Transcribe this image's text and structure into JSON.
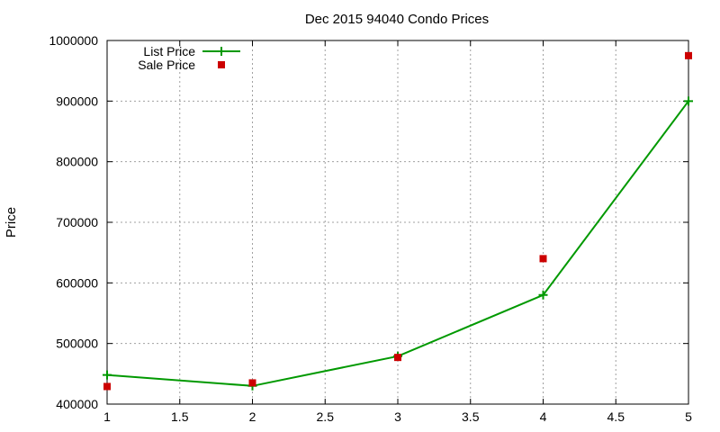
{
  "chart_data": {
    "type": "line",
    "title": "Dec 2015 94040 Condo Prices",
    "xlabel": "",
    "ylabel": "Price",
    "xlim": [
      1,
      5
    ],
    "ylim": [
      400000,
      1000000
    ],
    "x_ticks": [
      "1",
      "1.5",
      "2",
      "2.5",
      "3",
      "3.5",
      "4",
      "4.5",
      "5"
    ],
    "y_ticks": [
      "400000",
      "500000",
      "600000",
      "700000",
      "800000",
      "900000",
      "1000000"
    ],
    "grid": true,
    "legend_position": "top-left",
    "series": [
      {
        "name": "List Price",
        "style": "line-with-plus-markers",
        "color": "#009900",
        "points": [
          {
            "x": 1,
            "y": 448000
          },
          {
            "x": 2,
            "y": 430000
          },
          {
            "x": 3,
            "y": 479000
          },
          {
            "x": 4,
            "y": 580000
          },
          {
            "x": 5,
            "y": 900000
          }
        ]
      },
      {
        "name": "Sale Price",
        "style": "square-markers",
        "color": "#cc0000",
        "points": [
          {
            "x": 1,
            "y": 429000
          },
          {
            "x": 2,
            "y": 435000
          },
          {
            "x": 3,
            "y": 477000
          },
          {
            "x": 4,
            "y": 640000
          },
          {
            "x": 5,
            "y": 975000
          }
        ]
      }
    ]
  }
}
